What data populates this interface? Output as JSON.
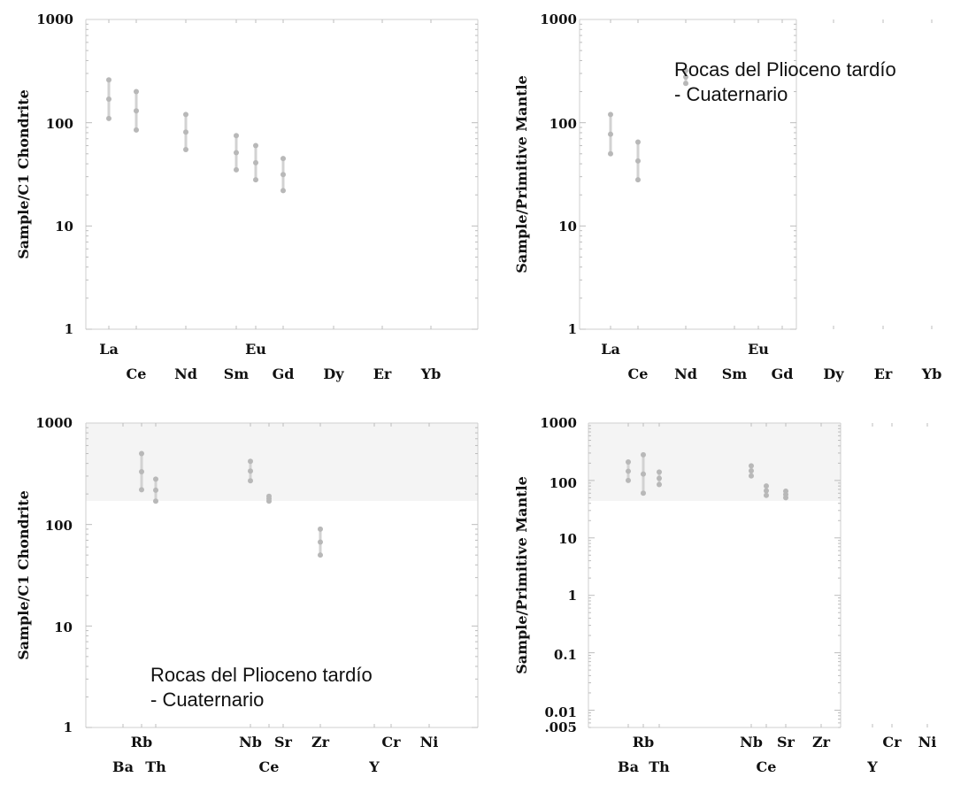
{
  "chart_data": [
    {
      "type": "scatter",
      "id": "ree-c1-1",
      "ylabel": "Sample/C1 Chondrite",
      "yscale": "log",
      "ylim": [
        1,
        1000
      ],
      "ytick_labels": [
        "1000",
        "100",
        "10",
        "1"
      ],
      "category_rows": [
        [
          "La",
          "Eu"
        ],
        [
          "Ce",
          "Nd",
          "Sm",
          "Gd",
          "Dy",
          "Er",
          "Yb"
        ]
      ],
      "points": [
        {
          "x": "La",
          "y": [
            110,
            260
          ]
        },
        {
          "x": "Ce",
          "y": [
            85,
            200
          ]
        },
        {
          "x": "Nd",
          "y": [
            55,
            120
          ]
        },
        {
          "x": "Sm",
          "y": [
            35,
            75
          ]
        },
        {
          "x": "Eu",
          "y": [
            28,
            60
          ]
        },
        {
          "x": "Gd",
          "y": [
            22,
            45
          ]
        }
      ],
      "annotation": ""
    },
    {
      "type": "scatter",
      "id": "ree-pm-1",
      "ylabel": "Sample/Primitive Mantle",
      "yscale": "log",
      "ylim": [
        1,
        1000
      ],
      "ytick_labels": [
        "1000",
        "100",
        "10",
        "1"
      ],
      "category_rows": [
        [
          "La",
          "Eu"
        ],
        [
          "Ce",
          "Nd",
          "Sm",
          "Gd",
          "Dy",
          "Er",
          "Yb"
        ]
      ],
      "points": [
        {
          "x": "La",
          "y": [
            50,
            120
          ]
        },
        {
          "x": "Ce",
          "y": [
            28,
            65
          ]
        },
        {
          "x": "Nd",
          "y": [
            240,
            320
          ]
        }
      ],
      "annotation": "Rocas del Plioceno tardío\n- Cuaternario"
    },
    {
      "type": "scatter",
      "id": "trace-c1-2",
      "ylabel": "Sample/C1 Chondrite",
      "yscale": "log",
      "ylim": [
        1,
        1000
      ],
      "ytick_labels": [
        "1000",
        "100",
        "10",
        "1"
      ],
      "category_rows": [
        [
          "Rb",
          "Nb",
          "Sr",
          "Zr",
          "Cr",
          "Ni"
        ],
        [
          "Ba",
          "Th",
          "Ce",
          "Y"
        ]
      ],
      "points": [
        {
          "x": "Rb",
          "y": [
            220,
            500
          ]
        },
        {
          "x": "Th",
          "y": [
            170,
            280
          ]
        },
        {
          "x": "Nb",
          "y": [
            270,
            420
          ]
        },
        {
          "x": "Ce",
          "y": [
            170,
            190
          ]
        },
        {
          "x": "Zr",
          "y": [
            50,
            90
          ]
        }
      ],
      "annotation": "Rocas del Plioceno tardío\n- Cuaternario"
    },
    {
      "type": "scatter",
      "id": "trace-pm-2",
      "ylabel": "Sample/Primitive Mantle",
      "yscale": "log",
      "ylim": [
        0.005,
        1000
      ],
      "ytick_labels": [
        "1000",
        "100",
        "10",
        "1",
        "0.1",
        "0.01",
        ".005"
      ],
      "category_rows": [
        [
          "Rb",
          "Nb",
          "Sr",
          "Zr",
          "Cr",
          "Ni"
        ],
        [
          "Ba",
          "Th",
          "Ce",
          "Y"
        ]
      ],
      "points": [
        {
          "x": "Ba",
          "y": [
            100,
            210
          ]
        },
        {
          "x": "Rb",
          "y": [
            60,
            280
          ]
        },
        {
          "x": "Th",
          "y": [
            85,
            140
          ]
        },
        {
          "x": "Nb",
          "y": [
            120,
            180
          ]
        },
        {
          "x": "Ce",
          "y": [
            55,
            80
          ]
        },
        {
          "x": "Sr",
          "y": [
            50,
            65
          ]
        }
      ],
      "annotation": ""
    }
  ]
}
